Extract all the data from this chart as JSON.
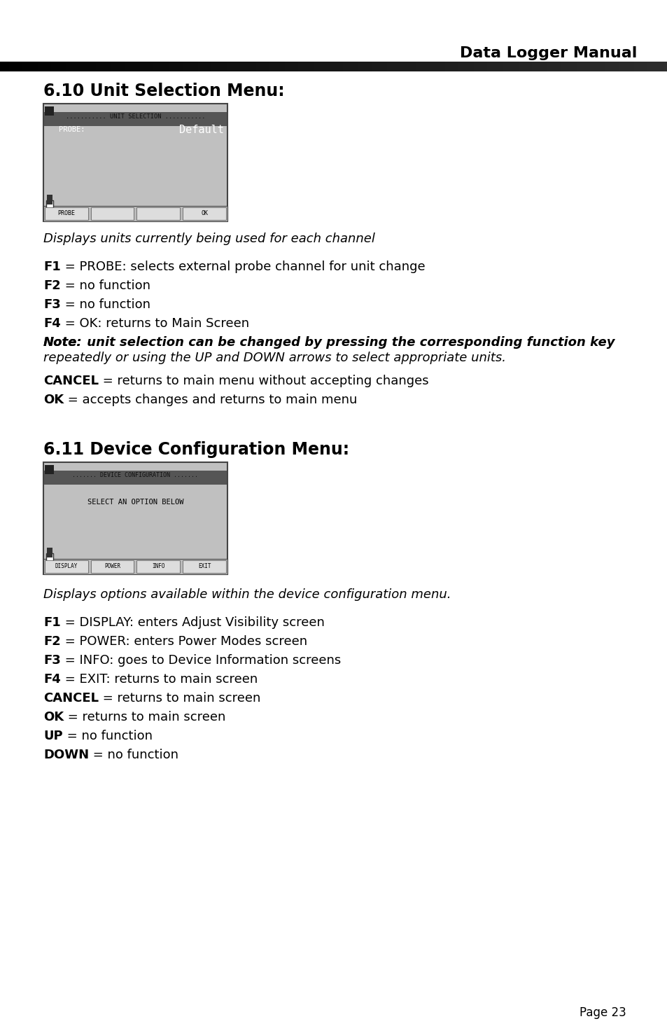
{
  "title_header": "Data Logger Manual",
  "page_number": "Page 23",
  "background_color": "#ffffff",
  "section1_heading": "6.10 Unit Selection Menu:",
  "section1_caption": "Displays units currently being used for each channel",
  "section1_lines": [
    {
      "bold": "F1",
      "normal": " = PROBE: selects external probe channel for unit change",
      "italic_all": false
    },
    {
      "bold": "F2",
      "normal": " = no function",
      "italic_all": false
    },
    {
      "bold": "F3",
      "normal": " = no function",
      "italic_all": false
    },
    {
      "bold": "F4",
      "normal": " = OK: returns to Main Screen",
      "italic_all": false
    },
    {
      "bold": "Note:",
      "normal": " unit selection can be changed by pressing the corresponding function key\nrepeatedly or using the UP and DOWN arrows to select appropriate units.",
      "italic_all": true
    },
    {
      "bold": "CANCEL",
      "normal": " = returns to main menu without accepting changes",
      "italic_all": false
    },
    {
      "bold": "OK",
      "normal": " = accepts changes and returns to main menu",
      "italic_all": false
    }
  ],
  "section2_heading": "6.11 Device Configuration Menu:",
  "section2_caption": "Displays options available within the device configuration menu.",
  "section2_lines": [
    {
      "bold": "F1",
      "normal": " = DISPLAY: enters Adjust Visibility screen",
      "italic_all": false
    },
    {
      "bold": "F2",
      "normal": " = POWER: enters Power Modes screen",
      "italic_all": false
    },
    {
      "bold": "F3",
      "normal": " = INFO: goes to Device Information screens",
      "italic_all": false
    },
    {
      "bold": "F4",
      "normal": " = EXIT: returns to main screen",
      "italic_all": false
    },
    {
      "bold": "CANCEL",
      "normal": " = returns to main screen",
      "italic_all": false
    },
    {
      "bold": "OK",
      "normal": " = returns to main screen",
      "italic_all": false
    },
    {
      "bold": "UP",
      "normal": " = no function",
      "italic_all": false
    },
    {
      "bold": "DOWN",
      "normal": " = no function",
      "italic_all": false
    }
  ]
}
